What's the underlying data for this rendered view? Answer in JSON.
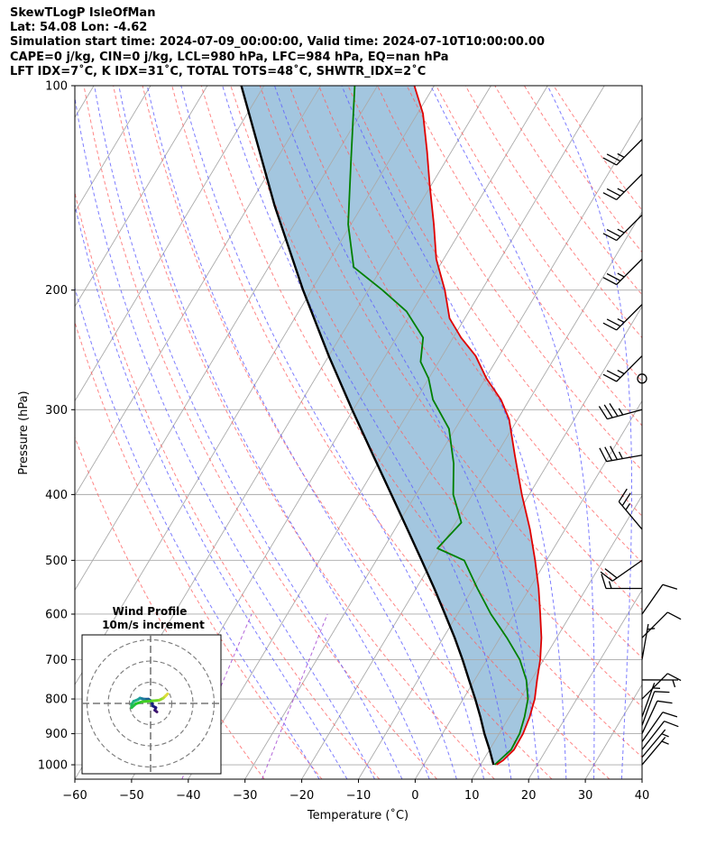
{
  "header": {
    "line1": "SkewTLogP IsleOfMan",
    "line2": "Lat: 54.08   Lon: -4.62",
    "line3": "Simulation start time: 2024-07-09_00:00:00, Valid time: 2024-07-10T10:00:00.00",
    "line4": "CAPE=0 j/kg, CIN=0 j/kg, LCL=980 hPa, LFC=984 hPa, EQ=nan hPa",
    "line5": "LFT IDX=7˚C, K IDX=31˚C, TOTAL TOTS=48˚C, SHWTR_IDX=2˚C"
  },
  "colors": {
    "temperature": "#e00000",
    "dewpoint": "#008000",
    "parcel": "#000000",
    "cape_fill": "#7fb0d3",
    "dry_adiabat": "#ff5c5c",
    "moist_adiabat": "#5c5cff",
    "mixing_ratio": "#9933cc",
    "isotherm": "#aaaaaa"
  },
  "chart_data": {
    "type": "line",
    "xlabel": "Temperature (˚C)",
    "ylabel": "Pressure (hPa)",
    "xlim": [
      -60,
      40
    ],
    "ylim": [
      1050,
      100
    ],
    "yscale": "log",
    "grid": true,
    "x_ticks": [
      "−60",
      "−50",
      "−40",
      "−30",
      "−20",
      "−10",
      "0",
      "10",
      "20",
      "30",
      "40"
    ],
    "y_ticks": [
      "100",
      "200",
      "300",
      "400",
      "500",
      "600",
      "700",
      "800",
      "900",
      "1000"
    ],
    "series": [
      {
        "key": "temperature",
        "points": [
          [
            1000,
            12.8
          ],
          [
            985,
            13.5
          ],
          [
            950,
            14.3
          ],
          [
            900,
            14.2
          ],
          [
            850,
            13.6
          ],
          [
            800,
            12.6
          ],
          [
            750,
            11.0
          ],
          [
            700,
            9.4
          ],
          [
            650,
            7.3
          ],
          [
            600,
            4.6
          ],
          [
            550,
            1.6
          ],
          [
            500,
            -2.0
          ],
          [
            450,
            -6.2
          ],
          [
            400,
            -11.3
          ],
          [
            350,
            -16.7
          ],
          [
            310,
            -21.5
          ],
          [
            290,
            -25.0
          ],
          [
            270,
            -29.8
          ],
          [
            250,
            -34.1
          ],
          [
            235,
            -38.6
          ],
          [
            220,
            -42.7
          ],
          [
            200,
            -46.5
          ],
          [
            180,
            -51.3
          ],
          [
            160,
            -55.4
          ],
          [
            140,
            -60.3
          ],
          [
            125,
            -64.3
          ],
          [
            110,
            -69.0
          ],
          [
            100,
            -73.5
          ]
        ]
      },
      {
        "key": "dewpoint",
        "points": [
          [
            1000,
            12.5
          ],
          [
            950,
            13.8
          ],
          [
            900,
            13.6
          ],
          [
            850,
            12.7
          ],
          [
            800,
            11.4
          ],
          [
            750,
            9.1
          ],
          [
            700,
            5.8
          ],
          [
            650,
            1.2
          ],
          [
            600,
            -4.1
          ],
          [
            550,
            -9.2
          ],
          [
            500,
            -14.5
          ],
          [
            480,
            -20.5
          ],
          [
            440,
            -19.0
          ],
          [
            400,
            -23.4
          ],
          [
            360,
            -26.6
          ],
          [
            320,
            -31.1
          ],
          [
            290,
            -37.0
          ],
          [
            270,
            -40.0
          ],
          [
            255,
            -43.2
          ],
          [
            235,
            -45.3
          ],
          [
            215,
            -51.0
          ],
          [
            200,
            -57.5
          ],
          [
            185,
            -65.0
          ],
          [
            160,
            -70.5
          ],
          [
            130,
            -76.5
          ],
          [
            100,
            -84.0
          ]
        ]
      },
      {
        "key": "parcel",
        "points": [
          [
            1000,
            12.3
          ],
          [
            950,
            10.0
          ],
          [
            900,
            7.4
          ],
          [
            850,
            4.9
          ],
          [
            800,
            2.1
          ],
          [
            750,
            -1.0
          ],
          [
            700,
            -4.3
          ],
          [
            650,
            -8.0
          ],
          [
            600,
            -12.2
          ],
          [
            550,
            -16.8
          ],
          [
            500,
            -22.0
          ],
          [
            450,
            -27.8
          ],
          [
            400,
            -34.3
          ],
          [
            350,
            -41.7
          ],
          [
            300,
            -50.2
          ],
          [
            250,
            -60.0
          ],
          [
            200,
            -71.5
          ],
          [
            150,
            -85.5
          ],
          [
            100,
            -104.0
          ]
        ]
      }
    ],
    "wind_barbs": [
      {
        "p": 1000,
        "dir": 40,
        "kt": 6
      },
      {
        "p": 975,
        "dir": 40,
        "kt": 7
      },
      {
        "p": 950,
        "dir": 38,
        "kt": 8
      },
      {
        "p": 925,
        "dir": 35,
        "kt": 9
      },
      {
        "p": 900,
        "dir": 25,
        "kt": 8
      },
      {
        "p": 875,
        "dir": 20,
        "kt": 8
      },
      {
        "p": 850,
        "dir": 20,
        "kt": 6
      },
      {
        "p": 800,
        "dir": 45,
        "kt": 9
      },
      {
        "p": 750,
        "dir": 90,
        "kt": 7
      },
      {
        "p": 700,
        "dir": 10,
        "kt": 6
      },
      {
        "p": 650,
        "dir": 45,
        "kt": 10
      },
      {
        "p": 600,
        "dir": 35,
        "kt": 8
      },
      {
        "p": 550,
        "dir": 270,
        "kt": 15
      },
      {
        "p": 500,
        "dir": 235,
        "kt": 20
      },
      {
        "p": 450,
        "dir": 320,
        "kt": 25
      },
      {
        "p": 350,
        "dir": 260,
        "kt": 35
      },
      {
        "p": 300,
        "dir": 255,
        "kt": 35
      },
      {
        "p": 270,
        "dir": 0,
        "kt": 0
      },
      {
        "p": 250,
        "dir": 225,
        "kt": 25
      },
      {
        "p": 210,
        "dir": 225,
        "kt": 25
      },
      {
        "p": 180,
        "dir": 225,
        "kt": 25
      },
      {
        "p": 155,
        "dir": 225,
        "kt": 25
      },
      {
        "p": 135,
        "dir": 225,
        "kt": 25
      },
      {
        "p": 120,
        "dir": 225,
        "kt": 25
      }
    ],
    "hodograph": {
      "title": "Wind Profile",
      "subtitle": "10m/s increment",
      "rings_ms": [
        10,
        20,
        30
      ],
      "uv": [
        [
          3,
          -4
        ],
        [
          2,
          -3.2
        ],
        [
          2.5,
          -2
        ],
        [
          1,
          -1.2
        ],
        [
          0.5,
          1
        ],
        [
          -1,
          2
        ],
        [
          -3,
          2
        ],
        [
          -5,
          2.5
        ],
        [
          -6,
          1.8
        ],
        [
          -8,
          1.0
        ],
        [
          -9,
          -0.5
        ],
        [
          -9,
          -2
        ],
        [
          -7,
          -0.2
        ],
        [
          -4,
          0.8
        ],
        [
          1,
          1.2
        ],
        [
          4,
          1.5
        ],
        [
          6,
          2.5
        ],
        [
          7,
          3.5
        ],
        [
          8,
          4.5
        ]
      ]
    }
  }
}
